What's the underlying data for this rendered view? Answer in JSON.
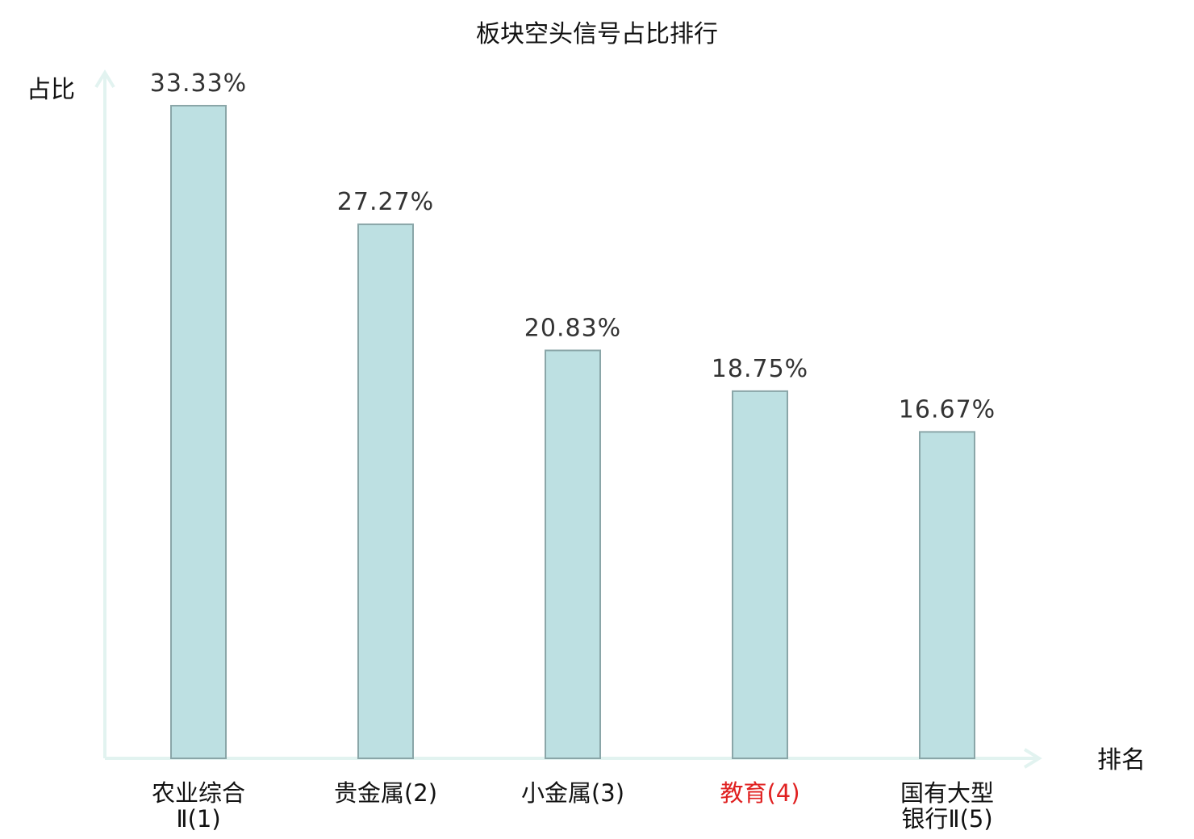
{
  "chart_data": {
    "type": "bar",
    "title": "板块空头信号占比排行",
    "ylabel": "占比",
    "xlabel": "排名",
    "ylim": [
      0,
      33.33
    ],
    "grid": false,
    "categories": [
      {
        "lines": [
          "农业综合",
          "Ⅱ(1)"
        ],
        "highlight": false
      },
      {
        "lines": [
          "贵金属(2)"
        ],
        "highlight": false
      },
      {
        "lines": [
          "小金属(3)"
        ],
        "highlight": false
      },
      {
        "lines": [
          "教育(4)"
        ],
        "highlight": true
      },
      {
        "lines": [
          "国有大型",
          "银行Ⅱ(5)"
        ],
        "highlight": false
      }
    ],
    "values": [
      33.33,
      27.27,
      20.83,
      18.75,
      16.67
    ],
    "value_labels": [
      "33.33%",
      "27.27%",
      "20.83%",
      "18.75%",
      "16.67%"
    ],
    "colors": {
      "bar_fill": "#bde0e2",
      "bar_stroke": "#8aa6a8",
      "axis": "#e2f3f0",
      "text": "#111111",
      "value_text": "#333333",
      "highlight": "#e02020"
    }
  }
}
